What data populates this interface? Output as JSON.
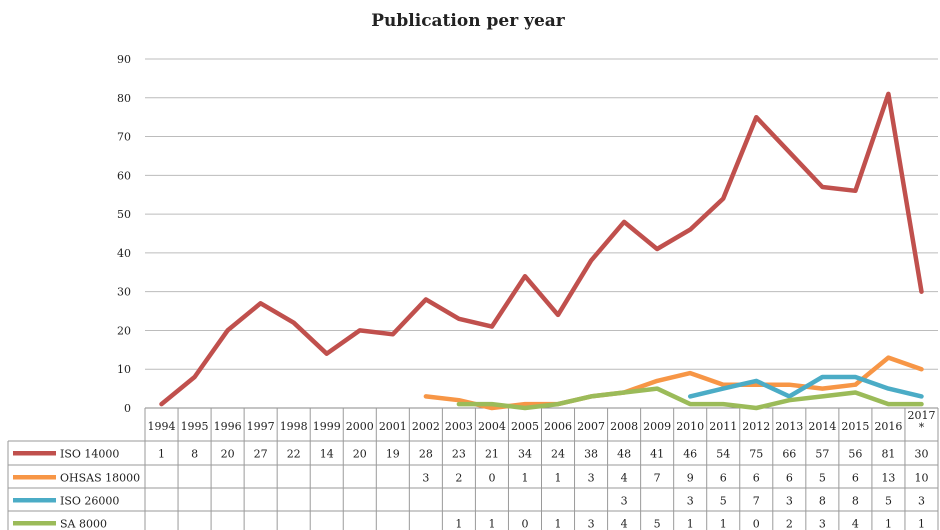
{
  "chart_data": {
    "type": "line",
    "title": "Publication per year",
    "categories": [
      "1994",
      "1995",
      "1996",
      "1997",
      "1998",
      "1999",
      "2000",
      "2001",
      "2002",
      "2003",
      "2004",
      "2005",
      "2006",
      "2007",
      "2008",
      "2009",
      "2010",
      "2011",
      "2012",
      "2013",
      "2014",
      "2015",
      "2016",
      "2017*"
    ],
    "ylim": [
      0,
      90
    ],
    "yticks": [
      0,
      10,
      20,
      30,
      40,
      50,
      60,
      70,
      80,
      90
    ],
    "grid": true,
    "legend": "data-table-left",
    "series": [
      {
        "name": "ISO 14000",
        "color": "#c0504d",
        "values": [
          1,
          8,
          20,
          27,
          22,
          14,
          20,
          19,
          28,
          23,
          21,
          34,
          24,
          38,
          48,
          41,
          46,
          54,
          75,
          66,
          57,
          56,
          81,
          30
        ]
      },
      {
        "name": "OHSAS 18000",
        "color": "#f79646",
        "values": [
          null,
          null,
          null,
          null,
          null,
          null,
          null,
          null,
          3,
          2,
          0,
          1,
          1,
          3,
          4,
          7,
          9,
          6,
          6,
          6,
          5,
          6,
          13,
          10
        ]
      },
      {
        "name": "ISO 26000",
        "color": "#4bacc6",
        "values": [
          null,
          null,
          null,
          null,
          null,
          null,
          null,
          null,
          null,
          null,
          null,
          null,
          null,
          null,
          3,
          null,
          3,
          5,
          7,
          3,
          8,
          8,
          5,
          3
        ]
      },
      {
        "name": "SA 8000",
        "color": "#9bbb59",
        "values": [
          null,
          null,
          null,
          null,
          null,
          null,
          null,
          null,
          null,
          1,
          1,
          0,
          1,
          3,
          4,
          5,
          1,
          1,
          0,
          2,
          3,
          4,
          1,
          1
        ]
      }
    ]
  }
}
